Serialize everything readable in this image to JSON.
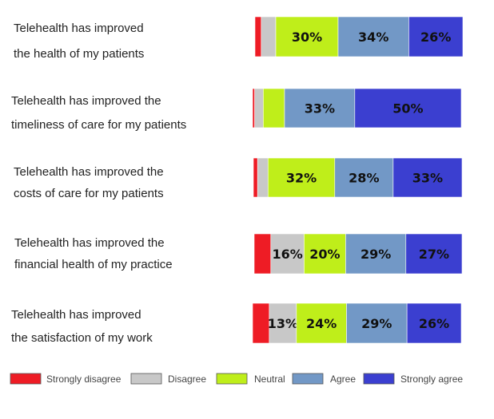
{
  "chart_data": {
    "type": "bar",
    "orientation": "horizontal",
    "stacked": true,
    "grid": false,
    "legend_position": "bottom",
    "categories": [
      [
        "Telehealth has improved",
        "the health of my patients"
      ],
      [
        "Telehealth has improved the",
        "timeliness of care for my patients"
      ],
      [
        "Telehealth has improved the",
        "costs of care for my patients"
      ],
      [
        "Telehealth has improved the",
        "financial health of my practice"
      ],
      [
        "Telehealth has improved",
        "the satisfaction of my work"
      ]
    ],
    "series": [
      {
        "name": "Strongly disagree",
        "color": "#ee1c25",
        "values": [
          3,
          1,
          2,
          8,
          8
        ]
      },
      {
        "name": "Disagree",
        "color": "#c8c8c8",
        "values": [
          7,
          4,
          5,
          16,
          13
        ]
      },
      {
        "name": "Neutral",
        "color": "#bfee1a",
        "values": [
          30,
          10,
          32,
          20,
          24
        ]
      },
      {
        "name": "Agree",
        "color": "#7298c6",
        "values": [
          34,
          33,
          28,
          29,
          29
        ]
      },
      {
        "name": "Strongly agree",
        "color": "#3b3fd0",
        "values": [
          26,
          50,
          33,
          27,
          26
        ]
      }
    ],
    "data_labels": [
      [
        "",
        "",
        "30%",
        "34%",
        "26%"
      ],
      [
        "",
        "",
        "",
        "33%",
        "50%"
      ],
      [
        "",
        "",
        "32%",
        "28%",
        "33%"
      ],
      [
        "",
        "16%",
        "20%",
        "29%",
        "27%"
      ],
      [
        "",
        "13%",
        "24%",
        "29%",
        "26%"
      ]
    ]
  }
}
